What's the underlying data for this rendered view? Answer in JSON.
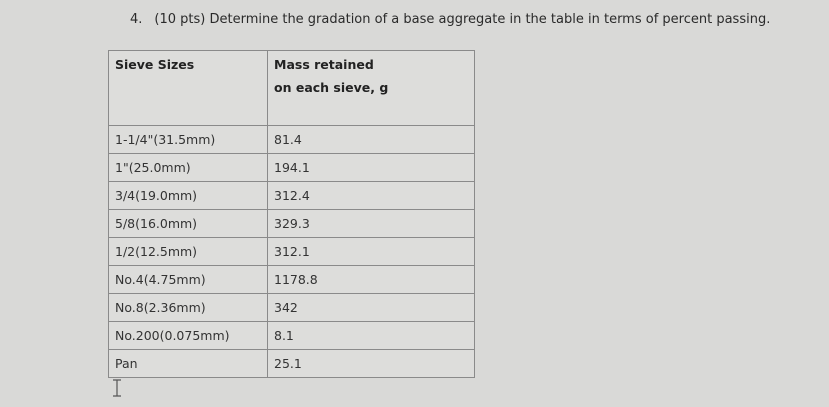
{
  "question": {
    "number": "4.",
    "text": "(10 pts) Determine the gradation of a base aggregate in the table in terms of percent passing."
  },
  "table": {
    "header": [
      "Sieve Sizes",
      "Mass retained",
      "on each sieve, g"
    ],
    "rows": [
      [
        "1-1/4\"(31.5mm)",
        "81.4"
      ],
      [
        "1\"(25.0mm)",
        "194.1"
      ],
      [
        "3/4(19.0mm)",
        "312.4"
      ],
      [
        "5/8(16.0mm)",
        "329.3"
      ],
      [
        "1/2(12.5mm)",
        "312.1"
      ],
      [
        "No.4(4.75mm)",
        "1178.8"
      ],
      [
        "No.8(2.36mm)",
        "342"
      ],
      [
        "No.200(0.075mm)",
        "8.1"
      ],
      [
        "Pan",
        "25.1"
      ]
    ]
  }
}
